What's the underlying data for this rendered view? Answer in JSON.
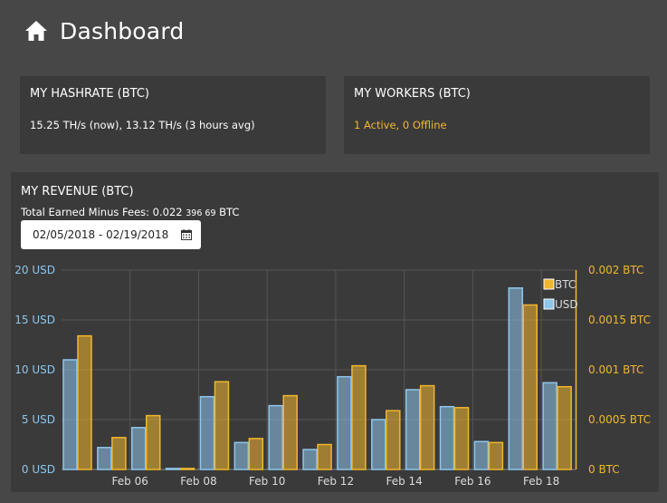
{
  "header": {
    "title": "Dashboard"
  },
  "hashrate": {
    "title": "MY HASHRATE (BTC)",
    "value": "15.25 TH/s (now), 13.12 TH/s (3 hours avg)"
  },
  "workers": {
    "title": "MY WORKERS (BTC)",
    "status": "1 Active, 0 Offline"
  },
  "revenue": {
    "title": "MY REVENUE (BTC)",
    "earned_label": "Total Earned Minus Fees:",
    "earned_main": "0.022",
    "earned_small": "396 69",
    "earned_unit": "BTC",
    "date_range": "02/05/2018 - 02/19/2018"
  },
  "colors": {
    "usd": "#8ec6ec",
    "btc": "#f0b72e",
    "background": "#474747",
    "card": "#3a3a3a"
  },
  "chart_data": {
    "type": "bar",
    "categories": [
      "Feb 05",
      "Feb 06",
      "Feb 07",
      "Feb 08",
      "Feb 09",
      "Feb 10",
      "Feb 11",
      "Feb 12",
      "Feb 13",
      "Feb 14",
      "Feb 15",
      "Feb 16",
      "Feb 17",
      "Feb 18",
      "Feb 19"
    ],
    "x_tick_labels": [
      "Feb 06",
      "Feb 08",
      "Feb 10",
      "Feb 12",
      "Feb 14",
      "Feb 16",
      "Feb 18"
    ],
    "series": [
      {
        "name": "USD",
        "axis": "left",
        "values": [
          11,
          2.2,
          4.2,
          0.1,
          7.3,
          2.7,
          6.4,
          2.0,
          9.3,
          5.0,
          8.0,
          6.3,
          2.8,
          18.2,
          8.7
        ]
      },
      {
        "name": "BTC",
        "axis": "right",
        "values": [
          0.00134,
          0.00032,
          0.00054,
          1e-05,
          0.00088,
          0.00031,
          0.00074,
          0.00025,
          0.00104,
          0.00059,
          0.00084,
          0.00062,
          0.00027,
          0.00165,
          0.00083
        ]
      }
    ],
    "y_left": {
      "ticks": [
        "0 USD",
        "5 USD",
        "10 USD",
        "15 USD",
        "20 USD"
      ],
      "ylim": [
        0,
        20
      ]
    },
    "y_right": {
      "ticks": [
        "0 BTC",
        "0.0005 BTC",
        "0.001 BTC",
        "0.0015 BTC",
        "0.002 BTC"
      ],
      "ylim": [
        0,
        0.002
      ]
    },
    "legend": {
      "position": "top-right",
      "items": [
        "BTC",
        "USD"
      ]
    },
    "grid": true
  }
}
